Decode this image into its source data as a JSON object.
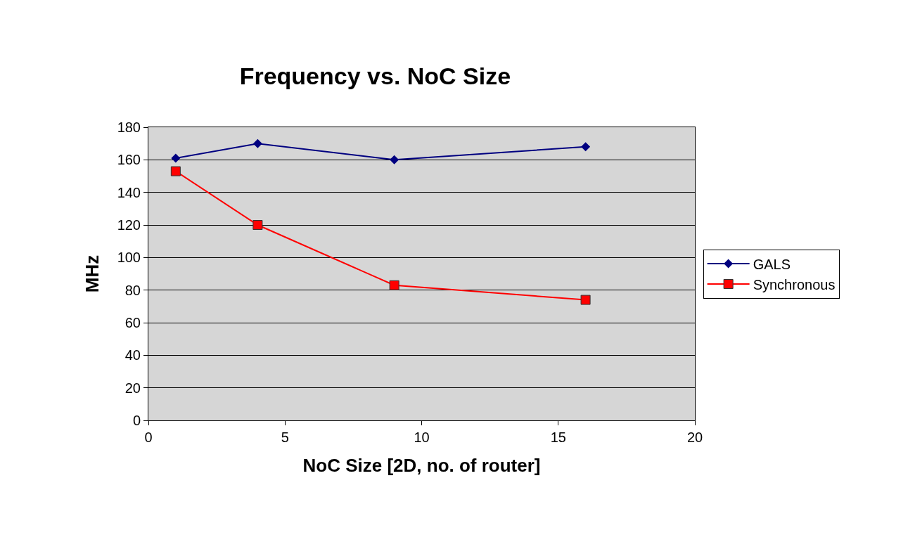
{
  "chart_data": {
    "type": "line",
    "title": "Frequency vs. NoC Size",
    "xlabel": "NoC Size [2D, no. of router]",
    "ylabel": "MHz",
    "x": [
      1,
      4,
      9,
      16
    ],
    "series": [
      {
        "name": "GALS",
        "color": "#000080",
        "marker": "diamond",
        "values": [
          161,
          170,
          160,
          168
        ]
      },
      {
        "name": "Synchronous",
        "color": "#ff0000",
        "marker": "square",
        "values": [
          153,
          120,
          83,
          74
        ]
      }
    ],
    "xlim": [
      0,
      20
    ],
    "xticks": [
      0,
      5,
      10,
      15,
      20
    ],
    "ylim": [
      0,
      180
    ],
    "yticks": [
      0,
      20,
      40,
      60,
      80,
      100,
      120,
      140,
      160,
      180
    ],
    "grid": "y",
    "legend": "right"
  }
}
